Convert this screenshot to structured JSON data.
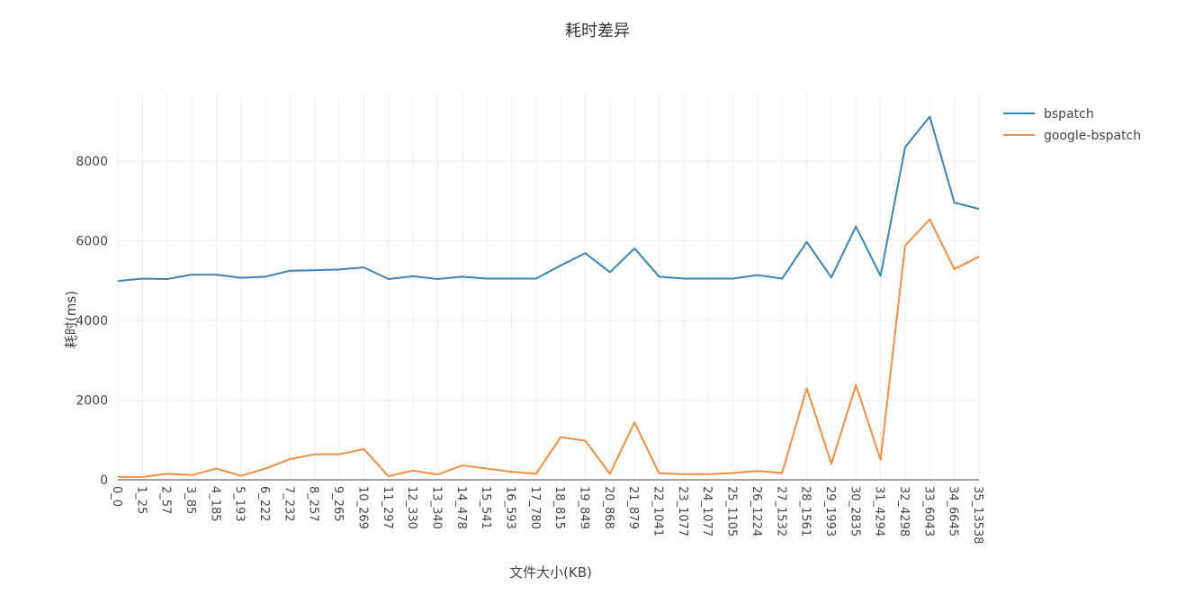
{
  "chart_data": {
    "type": "line",
    "title": "耗时差异",
    "xlabel": "文件大小(KB)",
    "ylabel": "耗时(ms)",
    "ylim": [
      -200,
      9600
    ],
    "yticks": [
      0,
      2000,
      4000,
      6000,
      8000
    ],
    "grid": true,
    "legend_position": "top-right",
    "categories": [
      "0_0",
      "1_25",
      "2_57",
      "3_85",
      "4_185",
      "5_193",
      "6_222",
      "7_232",
      "8_257",
      "9_265",
      "10_269",
      "11_297",
      "12_330",
      "13_340",
      "14_478",
      "15_541",
      "16_593",
      "17_780",
      "18_815",
      "19_849",
      "20_868",
      "21_879",
      "22_1041",
      "23_1077",
      "24_1077",
      "25_1105",
      "26_1224",
      "27_1532",
      "28_1561",
      "29_1993",
      "30_2835",
      "31_4294",
      "32_4298",
      "33_6043",
      "34_6645",
      "35_13538"
    ],
    "series": [
      {
        "name": "bspatch",
        "color": "#3b84b4",
        "values": [
          4990,
          5050,
          5040,
          5150,
          5150,
          5070,
          5100,
          5250,
          5260,
          5280,
          5330,
          5040,
          5110,
          5040,
          5100,
          5050,
          5050,
          5050,
          5380,
          5690,
          5210,
          5810,
          5100,
          5050,
          5050,
          5050,
          5140,
          5050,
          5970,
          5080,
          6360,
          5120,
          8350,
          9120,
          6960,
          6800
        ]
      },
      {
        "name": "google-bspatch",
        "color": "#f28e43",
        "values": [
          70,
          70,
          150,
          120,
          280,
          100,
          280,
          520,
          640,
          640,
          770,
          90,
          230,
          130,
          360,
          280,
          200,
          150,
          1070,
          980,
          150,
          1440,
          160,
          140,
          140,
          170,
          220,
          170,
          2300,
          400,
          2380,
          500,
          5880,
          6540,
          5290,
          5600
        ]
      }
    ]
  }
}
